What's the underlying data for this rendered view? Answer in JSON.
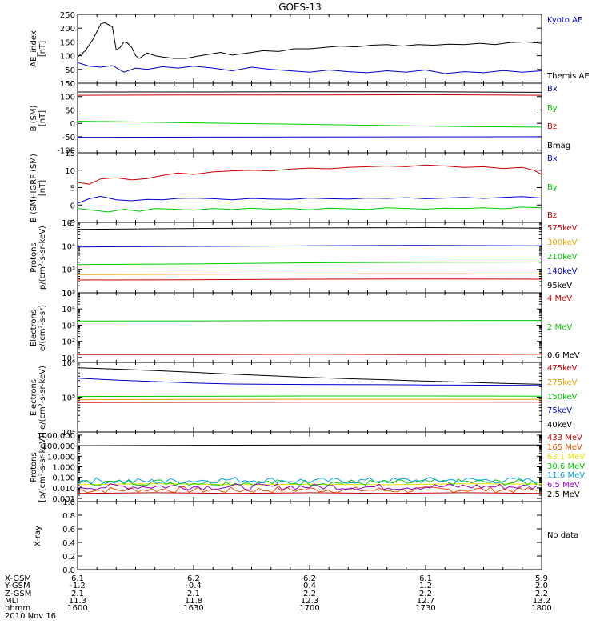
{
  "title": "GOES-13",
  "footer": {
    "date": "2010 Nov 16",
    "rows": [
      {
        "label": "X-GSM",
        "values": [
          "6.1",
          "6.2",
          "6.2",
          "6.1",
          "5.9"
        ]
      },
      {
        "label": "Y-GSM",
        "values": [
          "-1.2",
          "-0.4",
          "0.4",
          "1.2",
          "2.0"
        ]
      },
      {
        "label": "Z-GSM",
        "values": [
          "2.1",
          "2.1",
          "2.2",
          "2.2",
          "2.2"
        ]
      },
      {
        "label": "MLT",
        "values": [
          "11.3",
          "11.8",
          "12.3",
          "12.7",
          "13.2"
        ]
      },
      {
        "label": "hhmm",
        "values": [
          "1600",
          "1630",
          "1700",
          "1730",
          "1800"
        ]
      }
    ]
  },
  "chart_data": [
    {
      "type": "line",
      "id": "ae",
      "ylabel": [
        "AE_index",
        "[nT]"
      ],
      "ylim": [
        0,
        250
      ],
      "scale": "linear",
      "yticks": [
        0,
        50,
        100,
        150,
        200,
        250
      ],
      "ytick_labels": [
        "0",
        "50",
        "100",
        "150",
        "200",
        "250"
      ],
      "xlim": [
        0,
        120
      ],
      "series": [
        {
          "name": "Kyoto AE",
          "color": "#0000c8",
          "x": [
            0,
            3,
            6,
            9,
            12,
            15,
            18,
            22,
            26,
            30,
            35,
            40,
            45,
            50,
            55,
            60,
            65,
            70,
            75,
            80,
            85,
            90,
            95,
            100,
            105,
            110,
            115,
            120
          ],
          "y": [
            75,
            62,
            58,
            64,
            40,
            55,
            50,
            60,
            55,
            62,
            55,
            45,
            58,
            50,
            45,
            40,
            48,
            42,
            38,
            45,
            40,
            48,
            35,
            42,
            38,
            46,
            40,
            45
          ]
        },
        {
          "name": "Themis AE",
          "color": "#000000",
          "x": [
            0,
            2,
            4,
            6,
            7,
            9,
            10,
            11,
            12,
            13,
            14,
            15,
            16,
            18,
            20,
            22,
            25,
            28,
            31,
            34,
            37,
            40,
            44,
            48,
            52,
            56,
            60,
            64,
            68,
            72,
            76,
            80,
            84,
            88,
            92,
            96,
            100,
            104,
            108,
            112,
            116,
            120
          ],
          "y": [
            95,
            118,
            160,
            215,
            220,
            205,
            120,
            130,
            150,
            145,
            130,
            100,
            90,
            110,
            100,
            95,
            90,
            90,
            98,
            105,
            112,
            102,
            110,
            118,
            115,
            125,
            125,
            130,
            135,
            132,
            138,
            140,
            135,
            140,
            138,
            142,
            140,
            145,
            140,
            148,
            150,
            145
          ]
        }
      ]
    },
    {
      "type": "line",
      "id": "b_sm",
      "ylabel": [
        "B (SM)",
        "[nT]"
      ],
      "ylim": [
        -110,
        150
      ],
      "scale": "linear",
      "yticks": [
        -100,
        -50,
        0,
        50,
        100,
        150
      ],
      "ytick_labels": [
        "-100",
        "-50",
        "0",
        "50",
        "100",
        "150"
      ],
      "xlim": [
        0,
        120
      ],
      "series": [
        {
          "name": "Bx",
          "color": "#0000c8",
          "x": [
            0,
            120
          ],
          "y": [
            -52,
            -50
          ]
        },
        {
          "name": "By",
          "color": "#00c800",
          "x": [
            0,
            20,
            40,
            60,
            80,
            100,
            120
          ],
          "y": [
            8,
            4,
            0,
            -4,
            -8,
            -12,
            -14
          ]
        },
        {
          "name": "Bz",
          "color": "#c80000",
          "x": [
            0,
            30,
            60,
            90,
            120
          ],
          "y": [
            105,
            106,
            106,
            107,
            105
          ]
        },
        {
          "name": "Bmag",
          "color": "#000000",
          "x": [
            0,
            30,
            60,
            90,
            120
          ],
          "y": [
            117,
            117,
            118,
            118,
            116
          ]
        }
      ]
    },
    {
      "type": "line",
      "id": "b_igrf",
      "ylabel": [
        "B (SM)-IGRF (SM)",
        "[nT]"
      ],
      "ylim": [
        -5,
        15
      ],
      "scale": "linear",
      "yticks": [
        -5,
        0,
        5,
        10,
        15
      ],
      "ytick_labels": [
        "-5",
        "0",
        "5",
        "10",
        "15"
      ],
      "xlim": [
        0,
        120
      ],
      "series": [
        {
          "name": "Bx",
          "color": "#0000c8",
          "x": [
            0,
            3,
            6,
            10,
            14,
            18,
            22,
            26,
            30,
            35,
            40,
            45,
            50,
            55,
            60,
            65,
            70,
            75,
            80,
            85,
            90,
            95,
            100,
            105,
            110,
            115,
            120
          ],
          "y": [
            0.5,
            1.8,
            2.5,
            1.5,
            1.2,
            1.6,
            1.5,
            1.9,
            2.0,
            1.8,
            1.5,
            1.9,
            1.7,
            1.6,
            2.0,
            1.8,
            1.7,
            2.0,
            1.9,
            2.1,
            1.8,
            2.0,
            2.2,
            1.9,
            2.2,
            2.4,
            2.0
          ]
        },
        {
          "name": "By",
          "color": "#00c800",
          "x": [
            0,
            4,
            8,
            12,
            16,
            20,
            25,
            30,
            35,
            40,
            45,
            50,
            55,
            60,
            65,
            70,
            75,
            80,
            85,
            90,
            95,
            100,
            105,
            110,
            115,
            120
          ],
          "y": [
            -1.0,
            -1.5,
            -2.0,
            -1.2,
            -1.8,
            -1.0,
            -1.2,
            -1.5,
            -1.0,
            -1.3,
            -0.9,
            -1.2,
            -1.0,
            -1.4,
            -0.9,
            -1.1,
            -1.3,
            -0.8,
            -1.0,
            -1.2,
            -0.9,
            -1.0,
            -0.8,
            -1.1,
            -0.6,
            -0.8
          ]
        },
        {
          "name": "Bz",
          "color": "#c80000",
          "x": [
            0,
            3,
            6,
            10,
            14,
            18,
            22,
            26,
            30,
            35,
            40,
            45,
            50,
            55,
            60,
            65,
            70,
            75,
            80,
            85,
            90,
            95,
            100,
            105,
            110,
            115,
            118,
            120
          ],
          "y": [
            6.5,
            6.0,
            7.5,
            7.8,
            7.2,
            7.6,
            8.5,
            9.2,
            8.8,
            9.5,
            9.8,
            10.0,
            9.8,
            10.3,
            10.6,
            10.4,
            10.8,
            11.0,
            11.2,
            11.0,
            11.5,
            11.2,
            10.8,
            11.0,
            10.5,
            10.8,
            10.0,
            8.8
          ]
        }
      ]
    },
    {
      "type": "line",
      "id": "protons_low",
      "ylabel": [
        "Protons",
        "p/(cm²-s-sr-keV)"
      ],
      "ylim": [
        100,
        100000
      ],
      "scale": "log",
      "yticks": [
        100,
        1000,
        10000,
        100000
      ],
      "ytick_labels": [
        "10²",
        "10³",
        "10⁴",
        "10⁵"
      ],
      "xlim": [
        0,
        120
      ],
      "series": [
        {
          "name": "575keV",
          "color": "#c80000",
          "x": [
            0,
            30,
            60,
            90,
            120
          ],
          "y": [
            350,
            360,
            380,
            390,
            380
          ]
        },
        {
          "name": "300keV",
          "color": "#e6a000",
          "x": [
            0,
            30,
            60,
            90,
            120
          ],
          "y": [
            600,
            620,
            640,
            650,
            640
          ]
        },
        {
          "name": "210keV",
          "color": "#00c800",
          "x": [
            0,
            30,
            60,
            90,
            120
          ],
          "y": [
            1600,
            1700,
            1900,
            2000,
            2050
          ]
        },
        {
          "name": "140keV",
          "color": "#0000c8",
          "x": [
            0,
            30,
            60,
            90,
            120
          ],
          "y": [
            9000,
            9500,
            10000,
            10500,
            10000
          ]
        },
        {
          "name": "95keV",
          "color": "#000000",
          "x": [
            0,
            30,
            60,
            90,
            120
          ],
          "y": [
            50000,
            55000,
            58000,
            60000,
            57000
          ]
        }
      ]
    },
    {
      "type": "line",
      "id": "electrons_high",
      "ylabel": [
        "Electrons",
        "e/(cm²-s-sr)"
      ],
      "ylim": [
        5,
        100000
      ],
      "scale": "log",
      "yticks": [
        10,
        100,
        1000,
        10000,
        100000
      ],
      "ytick_labels": [
        "10¹",
        "10²",
        "10³",
        "10⁴",
        "10⁵"
      ],
      "xlim": [
        0,
        120
      ],
      "series": [
        {
          "name": "4 MeV",
          "color": "#c80000",
          "x": [
            0,
            30,
            60,
            90,
            120
          ],
          "y": [
            15,
            15,
            16,
            15,
            16
          ]
        },
        {
          "name": "2 MeV",
          "color": "#00c800",
          "x": [
            0,
            30,
            60,
            90,
            120
          ],
          "y": [
            1800,
            1850,
            1900,
            1900,
            1950
          ]
        },
        {
          "name": "0.6 MeV",
          "color": "#000000",
          "x": [
            0,
            30,
            60,
            90,
            120
          ],
          "y": [
            100000,
            100000,
            100000,
            100000,
            100000
          ]
        }
      ]
    },
    {
      "type": "line",
      "id": "electrons_low",
      "ylabel": [
        "Electrons",
        "e/(cm²-s-sr-keV)"
      ],
      "ylim": [
        10000,
        1000000
      ],
      "scale": "log",
      "yticks": [
        10000,
        100000,
        1000000
      ],
      "ytick_labels": [
        "10⁴",
        "10⁵",
        "10⁶"
      ],
      "xlim": [
        0,
        120
      ],
      "series": [
        {
          "name": "475keV",
          "color": "#c80000",
          "x": [
            0,
            30,
            60,
            90,
            120
          ],
          "y": [
            70000,
            71000,
            72000,
            72000,
            72000
          ]
        },
        {
          "name": "275keV",
          "color": "#e6a000",
          "x": [
            0,
            30,
            60,
            90,
            120
          ],
          "y": [
            85000,
            86000,
            87000,
            87000,
            86000
          ]
        },
        {
          "name": "150keV",
          "color": "#00c800",
          "x": [
            0,
            30,
            60,
            90,
            120
          ],
          "y": [
            105000,
            106000,
            108000,
            108000,
            107000
          ]
        },
        {
          "name": "75keV",
          "color": "#0000c8",
          "x": [
            0,
            10,
            20,
            30,
            40,
            50,
            60,
            70,
            80,
            90,
            100,
            110,
            120
          ],
          "y": [
            350000,
            310000,
            280000,
            255000,
            240000,
            235000,
            232000,
            230000,
            228000,
            225000,
            222000,
            220000,
            218000
          ]
        },
        {
          "name": "40keV",
          "color": "#000000",
          "x": [
            0,
            10,
            20,
            30,
            40,
            50,
            60,
            70,
            80,
            90,
            100,
            110,
            120
          ],
          "y": [
            700000,
            640000,
            580000,
            520000,
            460000,
            410000,
            370000,
            340000,
            315000,
            290000,
            270000,
            250000,
            235000
          ]
        }
      ]
    },
    {
      "type": "line",
      "id": "protons_high",
      "ylabel": [
        "Protons",
        "[p/(cm²-s-sr-keV)]"
      ],
      "ylim": [
        0.0005,
        2000
      ],
      "scale": "log",
      "yticks": [
        0.001,
        0.01,
        0.1,
        1,
        10,
        100,
        1000
      ],
      "ytick_labels": [
        "0.001",
        "0.010",
        "0.100",
        "1.000",
        "10.000",
        "100.000",
        "1000.000"
      ],
      "xlim": [
        0,
        120
      ],
      "series": [
        {
          "name": "433 MeV",
          "color": "#c80000",
          "x": [
            0,
            20,
            40,
            60,
            80,
            100,
            120
          ],
          "y": [
            0.003,
            0.0035,
            0.003,
            0.0035,
            0.003,
            0.0035,
            0.003
          ]
        },
        {
          "name": "165 MeV",
          "color": "#e65000",
          "x": [
            0,
            20,
            40,
            60,
            80,
            100,
            120
          ],
          "y": [
            0.006,
            0.007,
            0.006,
            0.007,
            0.006,
            0.007,
            0.006
          ]
        },
        {
          "name": "63.1 MeV",
          "color": "#e6e600",
          "x": [
            0,
            20,
            40,
            60,
            80,
            100,
            120
          ],
          "y": [
            0.02,
            0.025,
            0.02,
            0.022,
            0.02,
            0.025,
            0.022
          ]
        },
        {
          "name": "30.6 MeV",
          "color": "#00c800",
          "x": [
            0,
            20,
            40,
            60,
            80,
            100,
            120
          ],
          "y": [
            0.03,
            0.035,
            0.03,
            0.033,
            0.03,
            0.035,
            0.032
          ]
        },
        {
          "name": "11.6 MeV",
          "color": "#00a0e6",
          "x": [
            0,
            20,
            40,
            60,
            80,
            100,
            120
          ],
          "y": [
            0.05,
            0.04,
            0.06,
            0.045,
            0.05,
            0.055,
            0.05
          ]
        },
        {
          "name": "6.5 MeV",
          "color": "#9600c8",
          "x": [
            0,
            20,
            40,
            60,
            80,
            100,
            120
          ],
          "y": [
            0.012,
            0.014,
            0.012,
            0.013,
            0.012,
            0.014,
            0.012
          ]
        },
        {
          "name": "2.5 MeV",
          "color": "#000000",
          "x": [
            0,
            30,
            60,
            90,
            120
          ],
          "y": [
            100,
            110,
            115,
            118,
            115
          ]
        }
      ],
      "noisy": {
        "11.6 MeV": true,
        "6.5 MeV": true,
        "30.6 MeV": true,
        "165 MeV": true
      }
    },
    {
      "type": "line",
      "id": "xray",
      "ylabel": [
        "X-ray"
      ],
      "ylim": [
        0,
        1
      ],
      "scale": "linear",
      "yticks": [
        0,
        0.2,
        0.4,
        0.6,
        0.8,
        1.0
      ],
      "ytick_labels": [
        "0.0",
        "0.2",
        "0.4",
        "0.6",
        "0.8",
        "1.0"
      ],
      "xlim": [
        0,
        120
      ],
      "series": [],
      "message": "No data"
    }
  ]
}
